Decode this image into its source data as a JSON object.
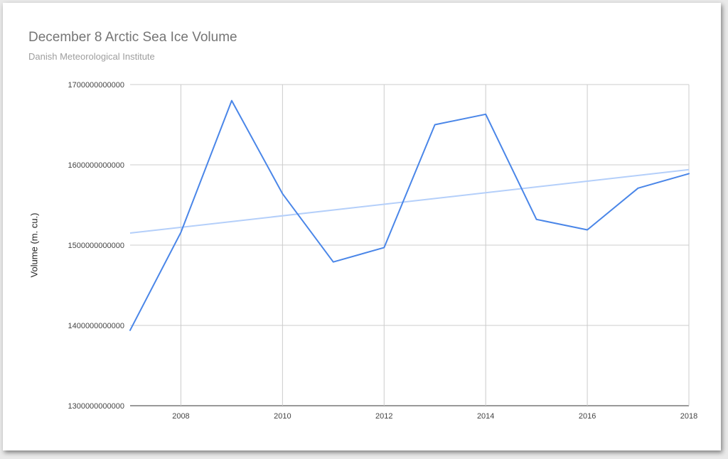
{
  "chart_data": {
    "type": "line",
    "title": "December 8 Arctic Sea Ice Volume",
    "subtitle": "Danish Meteorological Institute",
    "xlabel": "",
    "ylabel": "Volume (m. cu.)",
    "x": [
      2007,
      2008,
      2009,
      2010,
      2011,
      2012,
      2013,
      2014,
      2015,
      2016,
      2017,
      2018
    ],
    "xlim": [
      2007,
      2018
    ],
    "ylim": [
      1300000000000,
      1700000000000
    ],
    "x_ticks": [
      2008,
      2010,
      2012,
      2014,
      2016,
      2018
    ],
    "x_tick_labels": [
      "2008",
      "2010",
      "2012",
      "2014",
      "2016",
      "2018"
    ],
    "y_ticks": [
      1300000000000,
      1400000000000,
      1500000000000,
      1600000000000,
      1700000000000
    ],
    "y_tick_labels": [
      "1300000000000",
      "1400000000000",
      "1500000000000",
      "1600000000000",
      "1700000000000"
    ],
    "grid": true,
    "legend": "none",
    "series": [
      {
        "values": [
          1394000000000,
          1516000000000,
          1680000000000,
          1564000000000,
          1479000000000,
          1497000000000,
          1650000000000,
          1663000000000,
          1532000000000,
          1519000000000,
          1571000000000,
          1589000000000
        ],
        "color": "#4a86e8"
      }
    ],
    "trendline": {
      "x": [
        2007,
        2018
      ],
      "values": [
        1515000000000,
        1594000000000
      ],
      "color": "#b4cffa"
    }
  }
}
